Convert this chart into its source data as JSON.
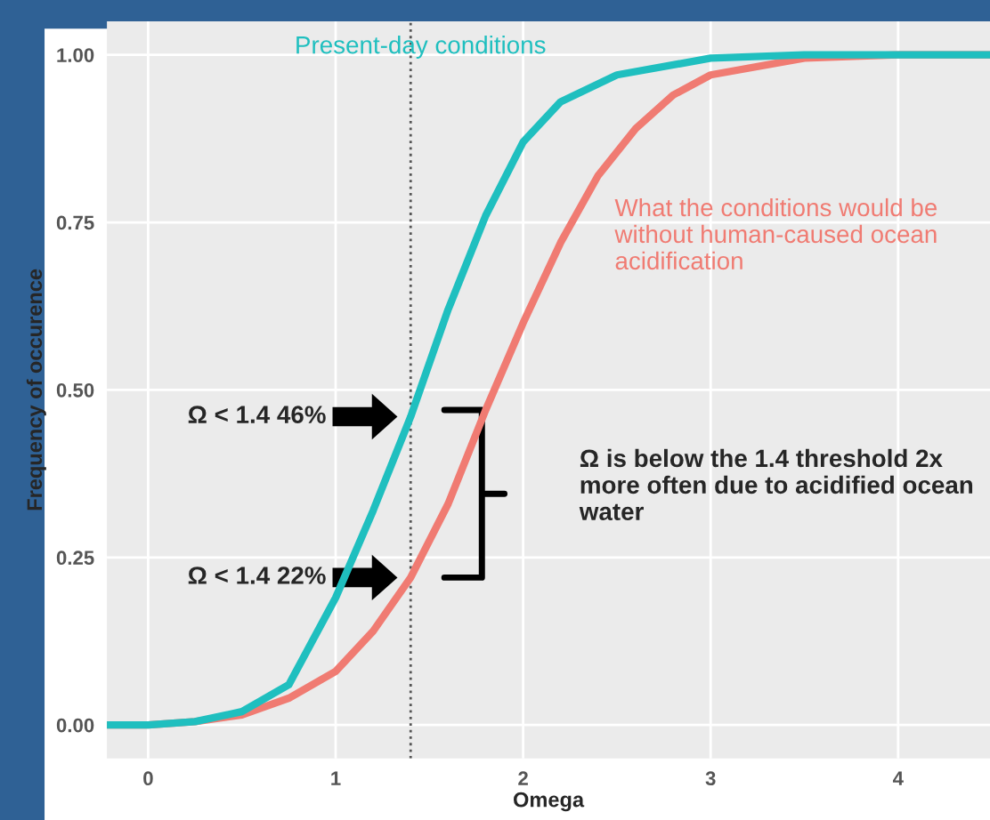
{
  "chart_data": {
    "type": "line",
    "xlabel": "Omega",
    "ylabel": "Frequency of occurence",
    "series": [
      {
        "name": "Present-day conditions",
        "color": "#1fbfbf",
        "x": [
          -0.22,
          0,
          0.25,
          0.5,
          0.75,
          1.0,
          1.2,
          1.4,
          1.6,
          1.8,
          2.0,
          2.2,
          2.5,
          3.0,
          3.5,
          4.0,
          4.49
        ],
        "values": [
          0,
          0,
          0.005,
          0.02,
          0.06,
          0.19,
          0.32,
          0.46,
          0.62,
          0.76,
          0.87,
          0.93,
          0.97,
          0.995,
          1,
          1,
          1
        ]
      },
      {
        "name": "What the conditions would be without human-caused ocean acidification",
        "color": "#f07b72",
        "x": [
          -0.22,
          0,
          0.25,
          0.5,
          0.75,
          1.0,
          1.2,
          1.4,
          1.6,
          1.8,
          2.0,
          2.2,
          2.4,
          2.6,
          2.8,
          3.0,
          3.5,
          4.0,
          4.49
        ],
        "values": [
          0,
          0,
          0.005,
          0.015,
          0.04,
          0.08,
          0.14,
          0.22,
          0.33,
          0.47,
          0.6,
          0.72,
          0.82,
          0.89,
          0.94,
          0.97,
          0.995,
          1,
          1
        ]
      }
    ],
    "xlim": [
      -0.22,
      4.49
    ],
    "ylim": [
      -0.05,
      1.05
    ],
    "xticks": [
      0,
      1,
      2,
      3,
      4
    ],
    "yticks": [
      {
        "value": 0,
        "label": "0.00"
      },
      {
        "value": 0.25,
        "label": "0.25"
      },
      {
        "value": 0.5,
        "label": "0.50"
      },
      {
        "value": 0.75,
        "label": "0.75"
      },
      {
        "value": 1,
        "label": "1.00"
      }
    ],
    "grid": true,
    "line_style": "solid",
    "marker": "none",
    "ref_lines": [
      {
        "axis": "x",
        "value": 1.4,
        "line_style": "dotted",
        "color": "#555555"
      }
    ],
    "annotations": [
      "Ω < 1.4 46%",
      "Ω < 1.4 22%",
      "Ω is below the 1.4 threshold 2x more often due to acidified ocean water"
    ]
  }
}
